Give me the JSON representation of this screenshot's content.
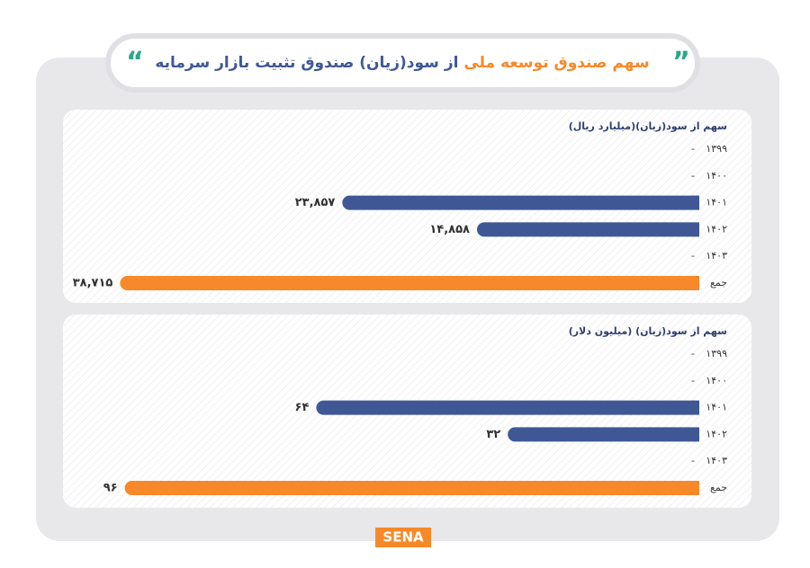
{
  "header": {
    "title_highlight": "سهم صندوق توسعه ملی",
    "title_rest": "از سود(زیان) صندوق تثبیت بازار سرمایه"
  },
  "chart_data": [
    {
      "type": "bar",
      "title": "سهم از سود(زیان)(میلیارد ریال)",
      "categories": [
        "۱۳۹۹",
        "۱۴۰۰",
        "۱۴۰۱",
        "۱۴۰۲",
        "۱۴۰۳",
        "جمع"
      ],
      "values": [
        null,
        null,
        23857,
        14858,
        null,
        38715
      ],
      "value_labels": [
        "-",
        "-",
        "۲۳,۸۵۷",
        "۱۴,۸۵۸",
        "-",
        "۳۸,۷۱۵"
      ],
      "colors": [
        "#3f5895",
        "#3f5895",
        "#3f5895",
        "#3f5895",
        "#3f5895",
        "#f7892a"
      ],
      "xlim": [
        0,
        40000
      ]
    },
    {
      "type": "bar",
      "title": "سهم از سود(زیان) (میلیون دلار)",
      "categories": [
        "۱۳۹۹",
        "۱۴۰۰",
        "۱۴۰۱",
        "۱۴۰۲",
        "۱۴۰۳",
        "جمع"
      ],
      "values": [
        null,
        null,
        64,
        32,
        null,
        96
      ],
      "value_labels": [
        "-",
        "-",
        "۶۴",
        "۳۲",
        "-",
        "۹۶"
      ],
      "colors": [
        "#3f5895",
        "#3f5895",
        "#3f5895",
        "#3f5895",
        "#3f5895",
        "#f7892a"
      ],
      "xlim": [
        0,
        100
      ]
    }
  ],
  "footer": {
    "logo": "SENA"
  }
}
